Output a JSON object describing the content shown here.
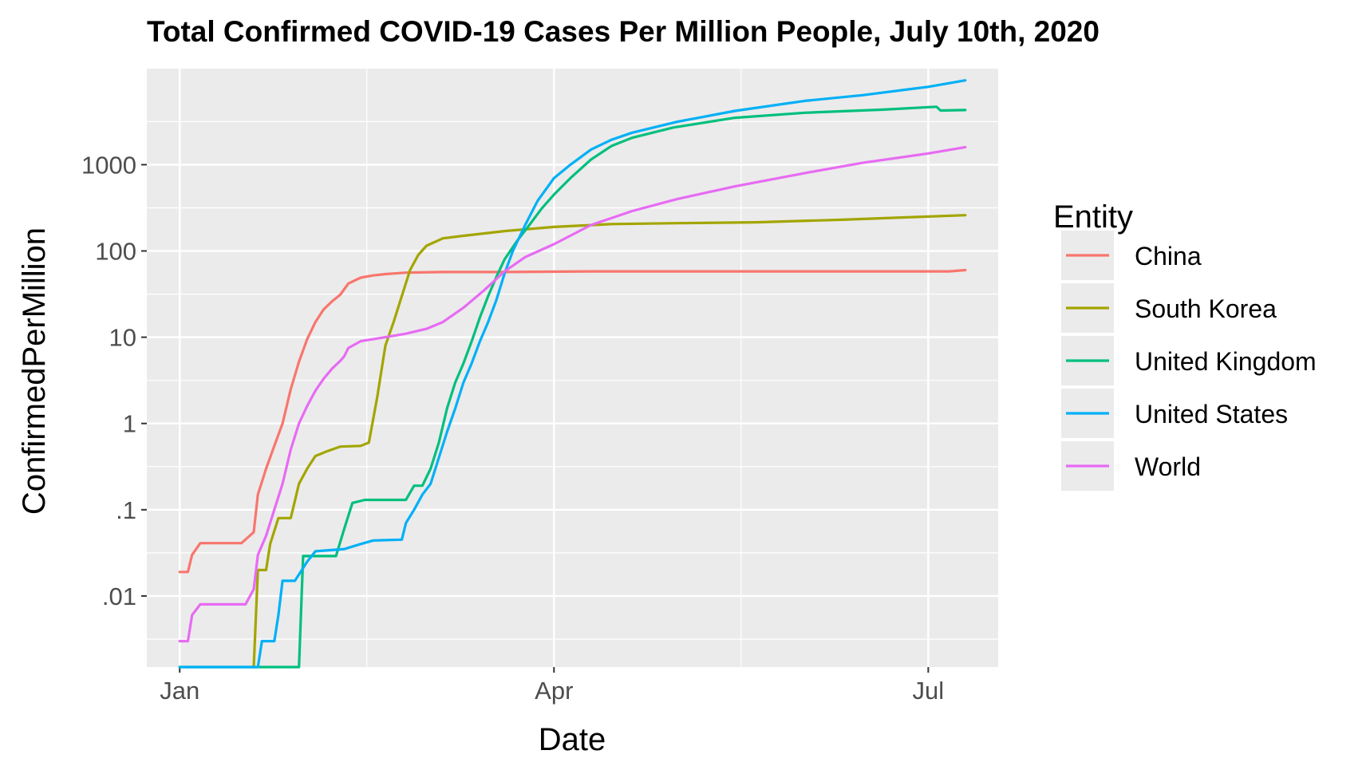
{
  "chart_data": {
    "type": "line",
    "title": "Total Confirmed COVID-19 Cases Per Million People, July 10th, 2020",
    "xlabel": "Date",
    "ylabel": "ConfirmedPerMillion",
    "y_scale": "log10",
    "ylim": [
      0.0015,
      13000
    ],
    "xlim": [
      "2019-12-24",
      "2020-07-18"
    ],
    "x_ticks": [
      {
        "label": "Jan",
        "date": "2020-01-01"
      },
      {
        "label": "Apr",
        "date": "2020-04-01"
      },
      {
        "label": "Jul",
        "date": "2020-07-01"
      }
    ],
    "y_ticks": [
      {
        "label": ".01",
        "value": 0.01
      },
      {
        "label": ".1",
        "value": 0.1
      },
      {
        "label": "1",
        "value": 1
      },
      {
        "label": "10",
        "value": 10
      },
      {
        "label": "100",
        "value": 100
      },
      {
        "label": "1000",
        "value": 1000
      }
    ],
    "grid": true,
    "legend": {
      "title": "Entity",
      "position": "right"
    },
    "series": [
      {
        "name": "China",
        "color": "#F8766D",
        "points": [
          [
            "2020-01-01",
            0.019
          ],
          [
            "2020-01-03",
            0.019
          ],
          [
            "2020-01-04",
            0.03
          ],
          [
            "2020-01-06",
            0.041
          ],
          [
            "2020-01-10",
            0.041
          ],
          [
            "2020-01-16",
            0.041
          ],
          [
            "2020-01-19",
            0.055
          ],
          [
            "2020-01-20",
            0.15
          ],
          [
            "2020-01-22",
            0.3
          ],
          [
            "2020-01-24",
            0.55
          ],
          [
            "2020-01-26",
            1.0
          ],
          [
            "2020-01-28",
            2.5
          ],
          [
            "2020-01-30",
            5.2
          ],
          [
            "2020-02-01",
            9.5
          ],
          [
            "2020-02-03",
            15
          ],
          [
            "2020-02-05",
            21
          ],
          [
            "2020-02-07",
            26
          ],
          [
            "2020-02-09",
            31
          ],
          [
            "2020-02-10",
            36
          ],
          [
            "2020-02-11",
            42
          ],
          [
            "2020-02-14",
            49
          ],
          [
            "2020-02-17",
            52
          ],
          [
            "2020-02-20",
            54
          ],
          [
            "2020-02-25",
            56
          ],
          [
            "2020-03-05",
            57
          ],
          [
            "2020-03-20",
            57
          ],
          [
            "2020-04-10",
            58
          ],
          [
            "2020-05-10",
            58
          ],
          [
            "2020-06-10",
            58
          ],
          [
            "2020-07-06",
            58
          ],
          [
            "2020-07-10",
            60
          ]
        ]
      },
      {
        "name": "South Korea",
        "color": "#A3A500",
        "points": [
          [
            "2020-01-19",
            0.0015
          ],
          [
            "2020-01-20",
            0.02
          ],
          [
            "2020-01-22",
            0.02
          ],
          [
            "2020-01-23",
            0.04
          ],
          [
            "2020-01-25",
            0.08
          ],
          [
            "2020-01-28",
            0.08
          ],
          [
            "2020-01-30",
            0.2
          ],
          [
            "2020-02-01",
            0.3
          ],
          [
            "2020-02-03",
            0.42
          ],
          [
            "2020-02-06",
            0.48
          ],
          [
            "2020-02-09",
            0.54
          ],
          [
            "2020-02-14",
            0.55
          ],
          [
            "2020-02-16",
            0.6
          ],
          [
            "2020-02-18",
            2.0
          ],
          [
            "2020-02-20",
            8
          ],
          [
            "2020-02-22",
            15
          ],
          [
            "2020-02-24",
            30
          ],
          [
            "2020-02-26",
            60
          ],
          [
            "2020-02-28",
            90
          ],
          [
            "2020-03-01",
            115
          ],
          [
            "2020-03-05",
            140
          ],
          [
            "2020-03-10",
            150
          ],
          [
            "2020-03-20",
            170
          ],
          [
            "2020-04-01",
            190
          ],
          [
            "2020-04-15",
            205
          ],
          [
            "2020-05-01",
            210
          ],
          [
            "2020-05-20], ",
            215
          ],
          [
            "2020-06-10",
            230
          ],
          [
            "2020-06-25",
            245
          ],
          [
            "2020-07-10",
            260
          ]
        ]
      },
      {
        "name": "United Kingdom",
        "color": "#00BF7D",
        "points": [
          [
            "2020-01-01",
            0.0015
          ],
          [
            "2020-01-30",
            0.0015
          ],
          [
            "2020-01-31",
            0.029
          ],
          [
            "2020-02-08",
            0.029
          ],
          [
            "2020-02-10",
            0.06
          ],
          [
            "2020-02-12",
            0.12
          ],
          [
            "2020-02-15",
            0.13
          ],
          [
            "2020-02-25",
            0.13
          ],
          [
            "2020-02-27",
            0.19
          ],
          [
            "2020-02-29",
            0.19
          ],
          [
            "2020-03-02",
            0.3
          ],
          [
            "2020-03-04",
            0.6
          ],
          [
            "2020-03-06",
            1.5
          ],
          [
            "2020-03-08",
            3
          ],
          [
            "2020-03-10",
            5
          ],
          [
            "2020-03-12",
            9
          ],
          [
            "2020-03-14",
            17
          ],
          [
            "2020-03-16",
            30
          ],
          [
            "2020-03-18",
            50
          ],
          [
            "2020-03-20], ",
            80
          ],
          [
            "2020-03-23",
            130
          ],
          [
            "2020-03-26",
            200
          ],
          [
            "2020-03-29",
            310
          ],
          [
            "2020-04-01",
            450
          ],
          [
            "2020-04-05",
            700
          ],
          [
            "2020-04-10",
            1150
          ],
          [
            "2020-04-15], ",
            1650
          ],
          [
            "2020-04-20",
            2050
          ],
          [
            "2020-04-30",
            2700
          ],
          [
            "2020-05-15",
            3500
          ],
          [
            "2020-06-01",
            4000
          ],
          [
            "2020-06-20",
            4350
          ],
          [
            "2020-07-01",
            4650
          ],
          [
            "2020-07-03",
            4700
          ],
          [
            "2020-07-04",
            4250
          ],
          [
            "2020-07-10",
            4300
          ]
        ]
      },
      {
        "name": "United States",
        "color": "#00B0F6",
        "points": [
          [
            "2020-01-01",
            0.0015
          ],
          [
            "2020-01-20",
            0.0015
          ],
          [
            "2020-01-21",
            0.003
          ],
          [
            "2020-01-24",
            0.003
          ],
          [
            "2020-01-25",
            0.006
          ],
          [
            "2020-01-26",
            0.015
          ],
          [
            "2020-01-29",
            0.015
          ],
          [
            "2020-02-01",
            0.025
          ],
          [
            "2020-02-03",
            0.033
          ],
          [
            "2020-02-10",
            0.035
          ],
          [
            "2020-02-14",
            0.04
          ],
          [
            "2020-02-17",
            0.044
          ],
          [
            "2020-02-24",
            0.045
          ],
          [
            "2020-02-25",
            0.07
          ],
          [
            "2020-02-27",
            0.1
          ],
          [
            "2020-02-29",
            0.15
          ],
          [
            "2020-03-02",
            0.2
          ],
          [
            "2020-03-04",
            0.4
          ],
          [
            "2020-03-06",
            0.8
          ],
          [
            "2020-03-08",
            1.5
          ],
          [
            "2020-03-10",
            3
          ],
          [
            "2020-03-12",
            5
          ],
          [
            "2020-03-14",
            9
          ],
          [
            "2020-03-16",
            15
          ],
          [
            "2020-03-18",
            27
          ],
          [
            "2020-03-20], ",
            55
          ],
          [
            "2020-03-22",
            100
          ],
          [
            "2020-03-25",
            200
          ],
          [
            "2020-03-28",
            380
          ],
          [
            "2020-04-01], ",
            700
          ],
          [
            "2020-04-05",
            1000
          ],
          [
            "2020-04-10",
            1500
          ],
          [
            "2020-04-15",
            1950
          ],
          [
            "2020-04-20",
            2350
          ],
          [
            "2020-05-01",
            3150
          ],
          [
            "2020-05-15",
            4200
          ],
          [
            "2020-06-01",
            5500
          ],
          [
            "2020-06-15], ",
            6400
          ],
          [
            "2020-07-01",
            8000
          ],
          [
            "2020-07-10",
            9500
          ]
        ]
      },
      {
        "name": "World",
        "color": "#E76BF3",
        "points": [
          [
            "2020-01-01",
            0.003
          ],
          [
            "2020-01-03",
            0.003
          ],
          [
            "2020-01-04",
            0.006
          ],
          [
            "2020-01-06",
            0.008
          ],
          [
            "2020-01-10",
            0.008
          ],
          [
            "2020-01-17",
            0.008
          ],
          [
            "2020-01-19",
            0.012
          ],
          [
            "2020-01-20",
            0.03
          ],
          [
            "2020-01-22",
            0.05
          ],
          [
            "2020-01-24",
            0.1
          ],
          [
            "2020-01-26",
            0.2
          ],
          [
            "2020-01-28",
            0.5
          ],
          [
            "2020-01-30",
            1.0
          ],
          [
            "2020-02-01",
            1.6
          ],
          [
            "2020-02-03",
            2.4
          ],
          [
            "2020-02-05",
            3.3
          ],
          [
            "2020-02-07",
            4.3
          ],
          [
            "2020-02-09",
            5.3
          ],
          [
            "2020-02-10",
            6.0
          ],
          [
            "2020-02-11",
            7.5
          ],
          [
            "2020-02-14",
            9
          ],
          [
            "2020-02-20",
            10
          ],
          [
            "2020-02-25",
            11
          ],
          [
            "2020-03-01",
            12.5
          ],
          [
            "2020-03-05",
            15
          ],
          [
            "2020-03-10",
            22
          ],
          [
            "2020-03-15",
            35
          ],
          [
            "2020-03-20",
            58
          ],
          [
            "2020-03-25",
            85
          ],
          [
            "2020-04-01",
            120
          ],
          [
            "2020-04-10",
            200
          ],
          [
            "2020-04-20",
            290
          ],
          [
            "2020-05-01",
            400
          ],
          [
            "2020-05-15",
            560
          ],
          [
            "2020-06-01",
            800
          ],
          [
            "2020-06-15",
            1050
          ],
          [
            "2020-07-01",
            1350
          ],
          [
            "2020-07-10",
            1600
          ]
        ]
      }
    ]
  }
}
